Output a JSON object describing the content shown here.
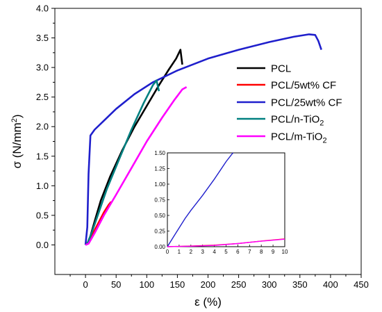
{
  "chart_data": [
    {
      "type": "line",
      "xlabel": "ε (%)",
      "ylabel_main": "σ (N/mm",
      "ylabel_sup": "2",
      "ylabel_tail": ")",
      "xlim": [
        -50,
        450
      ],
      "ylim": [
        -0.5,
        4.0
      ],
      "xticks": [
        "0",
        "50",
        "100",
        "150",
        "200",
        "250",
        "300",
        "350",
        "400",
        "450"
      ],
      "xtick_values": [
        0,
        50,
        100,
        150,
        200,
        250,
        300,
        350,
        400,
        450
      ],
      "yticks": [
        "0.0",
        "0.5",
        "1.0",
        "1.5",
        "2.0",
        "2.5",
        "3.0",
        "3.5",
        "4.0"
      ],
      "ytick_values": [
        0,
        0.5,
        1.0,
        1.5,
        2.0,
        2.5,
        3.0,
        3.5,
        4.0
      ],
      "grid": false,
      "legend_position": "right",
      "series": [
        {
          "name": "PCL",
          "color": "#000000",
          "points": [
            [
              0,
              0
            ],
            [
              3,
              0.02
            ],
            [
              8,
              0.15
            ],
            [
              15,
              0.4
            ],
            [
              25,
              0.75
            ],
            [
              40,
              1.15
            ],
            [
              60,
              1.6
            ],
            [
              80,
              2.0
            ],
            [
              100,
              2.35
            ],
            [
              120,
              2.7
            ],
            [
              135,
              2.95
            ],
            [
              148,
              3.15
            ],
            [
              155,
              3.3
            ],
            [
              158,
              3.05
            ]
          ]
        },
        {
          "name": "PCL/5wt% CF",
          "name_parts": [
            "PCL/5wt% CF"
          ],
          "color": "#ff0000",
          "points": [
            [
              0,
              0
            ],
            [
              5,
              0.05
            ],
            [
              10,
              0.15
            ],
            [
              20,
              0.35
            ],
            [
              30,
              0.55
            ],
            [
              38,
              0.68
            ],
            [
              42,
              0.73
            ]
          ]
        },
        {
          "name": "PCL/25wt% CF",
          "color": "#1f1fcc",
          "points": [
            [
              0,
              0
            ],
            [
              3,
              0.3
            ],
            [
              5,
              1.2
            ],
            [
              8,
              1.85
            ],
            [
              15,
              1.95
            ],
            [
              30,
              2.1
            ],
            [
              50,
              2.3
            ],
            [
              80,
              2.55
            ],
            [
              110,
              2.75
            ],
            [
              150,
              2.95
            ],
            [
              200,
              3.15
            ],
            [
              250,
              3.3
            ],
            [
              300,
              3.43
            ],
            [
              340,
              3.52
            ],
            [
              365,
              3.56
            ],
            [
              375,
              3.55
            ],
            [
              380,
              3.45
            ],
            [
              385,
              3.3
            ]
          ]
        },
        {
          "name_main": "PCL/n-TiO",
          "name_sub": "2",
          "color": "#008080",
          "points": [
            [
              0,
              0
            ],
            [
              3,
              0.02
            ],
            [
              10,
              0.2
            ],
            [
              20,
              0.5
            ],
            [
              35,
              0.95
            ],
            [
              55,
              1.45
            ],
            [
              75,
              1.95
            ],
            [
              95,
              2.4
            ],
            [
              110,
              2.7
            ],
            [
              116,
              2.78
            ],
            [
              120,
              2.6
            ]
          ]
        },
        {
          "name_main": "PCL/m-TiO",
          "name_sub": "2",
          "color": "#ff00ff",
          "points": [
            [
              0,
              0
            ],
            [
              5,
              0.02
            ],
            [
              15,
              0.2
            ],
            [
              30,
              0.5
            ],
            [
              50,
              0.85
            ],
            [
              75,
              1.3
            ],
            [
              100,
              1.75
            ],
            [
              125,
              2.15
            ],
            [
              145,
              2.45
            ],
            [
              158,
              2.63
            ],
            [
              165,
              2.67
            ]
          ]
        }
      ]
    },
    {
      "type": "line",
      "inset": true,
      "xlim": [
        0,
        10
      ],
      "ylim": [
        0,
        1.5
      ],
      "xticks": [
        "0",
        "1",
        "2",
        "3",
        "4",
        "5",
        "6",
        "7",
        "8",
        "9",
        "10"
      ],
      "xtick_values": [
        0,
        1,
        2,
        3,
        4,
        5,
        6,
        7,
        8,
        9,
        10
      ],
      "yticks": [
        "0.00",
        "0.25",
        "0.50",
        "0.75",
        "1.00",
        "1.25",
        "1.50"
      ],
      "ytick_values": [
        0,
        0.25,
        0.5,
        0.75,
        1.0,
        1.25,
        1.5
      ],
      "series": [
        {
          "color": "#1f1fcc",
          "points": [
            [
              0,
              0
            ],
            [
              0.5,
              0.15
            ],
            [
              1,
              0.3
            ],
            [
              1.5,
              0.45
            ],
            [
              2,
              0.58
            ],
            [
              3,
              0.82
            ],
            [
              4,
              1.08
            ],
            [
              4.5,
              1.22
            ],
            [
              5,
              1.36
            ],
            [
              5.5,
              1.48
            ],
            [
              5.6,
              1.5
            ]
          ]
        },
        {
          "color": "#ff0000",
          "points": [
            [
              0,
              0
            ],
            [
              2,
              0.01
            ],
            [
              4,
              0.025
            ],
            [
              6,
              0.05
            ],
            [
              8,
              0.09
            ],
            [
              10,
              0.125
            ]
          ]
        },
        {
          "color": "#ff00ff",
          "points": [
            [
              0,
              0
            ],
            [
              2,
              0.008
            ],
            [
              4,
              0.02
            ],
            [
              6,
              0.05
            ],
            [
              8,
              0.088
            ],
            [
              10,
              0.12
            ]
          ]
        }
      ]
    }
  ]
}
